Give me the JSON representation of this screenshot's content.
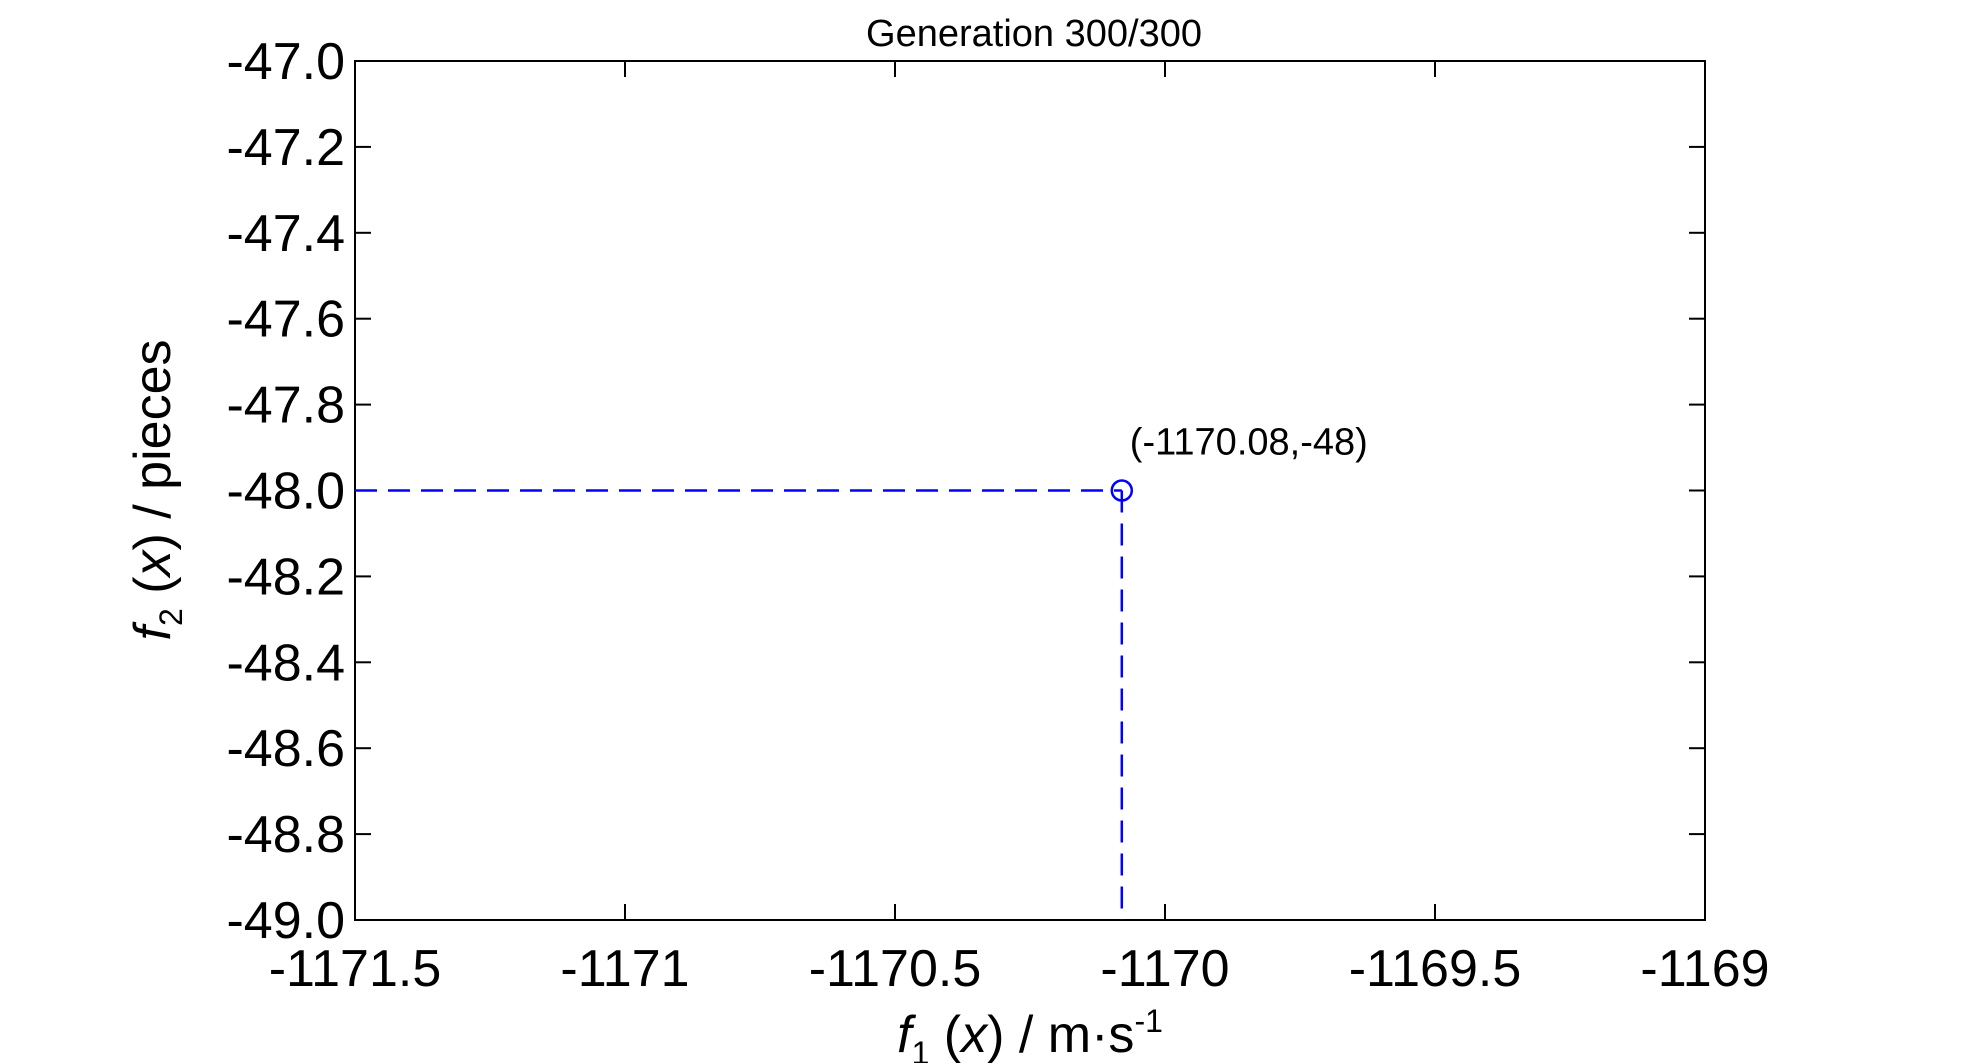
{
  "chart_data": {
    "type": "scatter",
    "title": "Generation 300/300",
    "xlabel": {
      "func": "f",
      "sub": "1",
      "arg": "x",
      "unit": "m·s",
      "sup": "-1"
    },
    "ylabel": {
      "func": "f",
      "sub": "2",
      "arg": "x",
      "unit": "pieces"
    },
    "xlim": [
      -1171.5,
      -1169
    ],
    "ylim": [
      -49.0,
      -47.0
    ],
    "xticks": [
      -1171.5,
      -1171,
      -1170.5,
      -1170,
      -1169.5,
      -1169
    ],
    "xtick_labels": [
      "-1171.5",
      "-1171",
      "-1170.5",
      "-1170",
      "-1169.5",
      "-1169"
    ],
    "yticks": [
      -47.0,
      -47.2,
      -47.4,
      -47.6,
      -47.8,
      -48.0,
      -48.2,
      -48.4,
      -48.6,
      -48.8,
      -49.0
    ],
    "ytick_labels": [
      "-47.0",
      "-47.2",
      "-47.4",
      "-47.6",
      "-47.8",
      "-48.0",
      "-48.2",
      "-48.4",
      "-48.6",
      "-48.8",
      "-49.0"
    ],
    "grid": false,
    "series": [
      {
        "x": [
          -1170.08
        ],
        "y": [
          -48.0
        ],
        "marker": "circle",
        "color": "#0000ff"
      }
    ],
    "guide_lines": {
      "style": "dashed",
      "color": "#0000ff",
      "x": -1170.08,
      "y": -48.0
    },
    "annotation": {
      "text": "(-1170.08,-48)",
      "x": -1170.08,
      "y": -48.0
    }
  }
}
